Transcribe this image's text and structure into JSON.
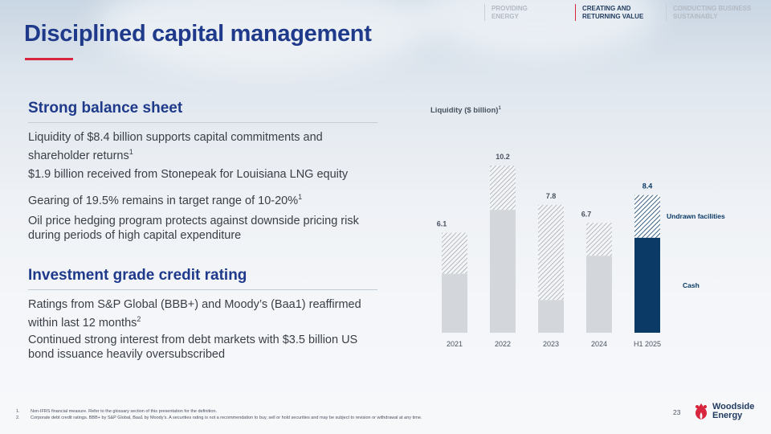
{
  "nav": {
    "items": [
      {
        "line1": "PROVIDING",
        "line2": "ENERGY"
      },
      {
        "line1": "CREATING AND",
        "line2": "RETURNING VALUE"
      },
      {
        "line1": "CONDUCTING BUSINESS",
        "line2": "SUSTAINABLY"
      }
    ],
    "active_index": 1
  },
  "title": "Disciplined capital management",
  "section1": {
    "heading": "Strong balance sheet",
    "bullets": [
      {
        "text": "Liquidity of $8.4 billion supports capital commitments and shareholder returns",
        "sup": "1"
      },
      {
        "text": "$1.9 billion received from Stonepeak for Louisiana LNG equity",
        "sup": ""
      },
      {
        "text": "Gearing of 19.5% remains in target range of 10-20%",
        "sup": "1"
      },
      {
        "text": "Oil price hedging program protects against downside pricing risk during periods of high capital expenditure",
        "sup": ""
      }
    ]
  },
  "section2": {
    "heading": "Investment grade credit rating",
    "bullets": [
      {
        "text": "Ratings from S&P Global (BBB+) and Moody’s (Baa1) reaffirmed within last 12 months",
        "sup": "2"
      },
      {
        "text": "Continued strong interest from debt markets with $3.5 billion US bond issuance heavily oversubscribed",
        "sup": ""
      }
    ]
  },
  "chart_data": {
    "type": "bar",
    "stacked": true,
    "title": "Liquidity ($ billion)",
    "title_sup": "1",
    "categories": [
      "2021",
      "2022",
      "2023",
      "2024",
      "H1 2025"
    ],
    "series": [
      {
        "name": "Cash",
        "values": [
          3.6,
          7.5,
          2.0,
          4.7,
          5.8
        ]
      },
      {
        "name": "Undrawn facilities",
        "values": [
          2.5,
          2.7,
          5.8,
          2.0,
          2.6
        ]
      }
    ],
    "totals": [
      6.1,
      10.2,
      7.8,
      6.7,
      8.4
    ],
    "total_labels": [
      "6.1",
      "10.2",
      "7.8",
      "6.7",
      "8.4"
    ],
    "legend": [
      "Undrawn facilities",
      "Cash"
    ],
    "legend_placement": "right",
    "ylim": [
      0,
      10.2
    ],
    "colors": {
      "cash_past": "#d3d6da",
      "cash_current": "#0b3a66",
      "hatch_past": "#9aa0a8",
      "hatch_current": "#0b3a66",
      "total_current": "#0b3a66",
      "total_past": "#4a5260"
    }
  },
  "footnotes": [
    {
      "num": "1.",
      "text": "Non-IFRS financial measure. Refer to the glossary section of this presentation for the definition."
    },
    {
      "num": "2.",
      "text": "Corporate debt credit ratings. BBB+ by S&P Global, Baa1 by Moody’s. A securities rating is not a recommendation to buy, sell or hold securities and may be subject to revision or withdrawal at any time."
    }
  ],
  "page_number": "23",
  "logo": {
    "line1": "Woodside",
    "line2": "Energy",
    "icon": "woodside-flame-logo-icon"
  }
}
